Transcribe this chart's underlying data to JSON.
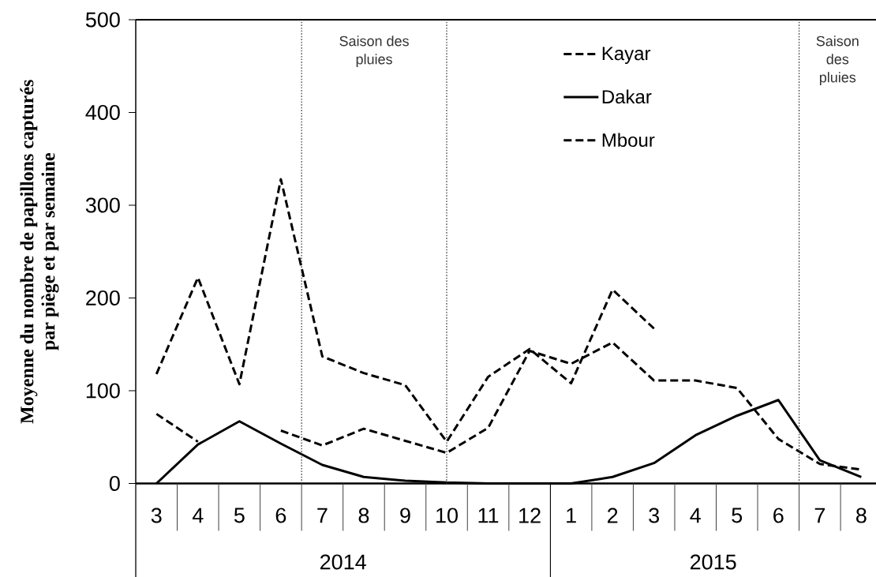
{
  "chart_data": {
    "type": "line",
    "ylabel": "Moyenne du nombre de papillons capturés par piège et par semaine",
    "x": [
      "2014-03",
      "2014-04",
      "2014-05",
      "2014-06",
      "2014-07",
      "2014-08",
      "2014-09",
      "2014-10",
      "2014-11",
      "2014-12",
      "2015-01",
      "2015-02",
      "2015-03",
      "2015-04",
      "2015-05",
      "2015-06",
      "2015-07",
      "2015-08"
    ],
    "series": [
      {
        "name": "Kayar",
        "color": "#000000",
        "line_style": "dashed",
        "values": [
          118,
          222,
          107,
          328,
          137,
          119,
          106,
          45,
          115,
          145,
          108,
          209,
          167,
          null,
          null,
          null,
          null,
          null
        ]
      },
      {
        "name": "Dakar",
        "color": "#000000",
        "line_style": "solid",
        "values": [
          0,
          42,
          67,
          43,
          20,
          7,
          3,
          1,
          0,
          0,
          0,
          7,
          22,
          52,
          73,
          90,
          25,
          7
        ]
      },
      {
        "name": "Mbour",
        "color": "#000000",
        "line_style": "dashed",
        "values": [
          75,
          45,
          null,
          57,
          41,
          59,
          46,
          33,
          60,
          143,
          129,
          152,
          111,
          111,
          103,
          48,
          21,
          15
        ]
      }
    ],
    "xlim": [
      "2014-02-15",
      "2015-08-12"
    ],
    "xticks": [
      {
        "value": "2014-03",
        "label": "3"
      },
      {
        "value": "2014-04",
        "label": "4"
      },
      {
        "value": "2014-05",
        "label": "5"
      },
      {
        "value": "2014-06",
        "label": "6"
      },
      {
        "value": "2014-07",
        "label": "7"
      },
      {
        "value": "2014-08",
        "label": "8"
      },
      {
        "value": "2014-09",
        "label": "9"
      },
      {
        "value": "2014-10",
        "label": "10"
      },
      {
        "value": "2014-11",
        "label": "11"
      },
      {
        "value": "2014-12",
        "label": "12"
      },
      {
        "value": "2015-01",
        "label": "1"
      },
      {
        "value": "2015-02",
        "label": "2"
      },
      {
        "value": "2015-03",
        "label": "3"
      },
      {
        "value": "2015-04",
        "label": "4"
      },
      {
        "value": "2015-05",
        "label": "5"
      },
      {
        "value": "2015-06",
        "label": "6"
      },
      {
        "value": "2015-07",
        "label": "7"
      },
      {
        "value": "2015-08",
        "label": "8"
      }
    ],
    "ylim": [
      0,
      500
    ],
    "yticks": [
      0,
      100,
      200,
      300,
      400,
      500
    ],
    "ref_lines": [
      {
        "axis": "x",
        "value": "2014-06-16",
        "label": "Saison des pluies",
        "line_style": "dotted"
      },
      {
        "axis": "x",
        "value": "2014-10",
        "line_style": "dotted"
      },
      {
        "axis": "x",
        "value": "2015-06-16",
        "label": "Saison des pluies",
        "line_style": "dotted"
      }
    ],
    "annotations": [
      "2014",
      "2015"
    ],
    "legend": "top",
    "marker": "none"
  }
}
